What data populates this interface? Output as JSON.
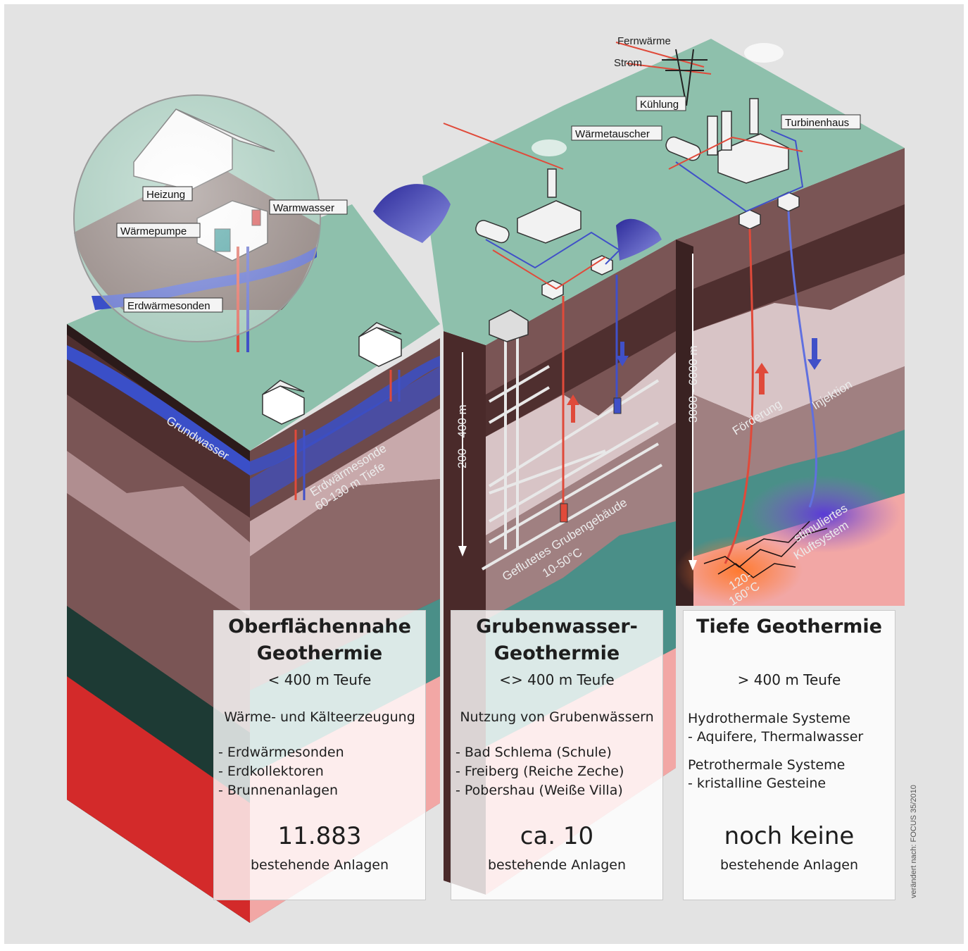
{
  "panels": [
    {
      "title": "Oberflächennahe\nGeothermie",
      "depth": "< 400 m Teufe",
      "usage": "Wärme- und Kälteerzeugung",
      "items": [
        "- Erdwärmesonden",
        "- Erdkollektoren",
        "- Brunnenanlagen"
      ],
      "count": "11.883",
      "count_label": "bestehende Anlagen"
    },
    {
      "title": "Grubenwasser-\nGeothermie",
      "depth": "<> 400 m Teufe",
      "usage": "Nutzung von Grubenwässern",
      "items": [
        "- Bad Schlema (Schule)",
        "- Freiberg (Reiche Zeche)",
        "- Pobershau (Weiße Villa)"
      ],
      "count": "ca. 10",
      "count_label": "bestehende Anlagen"
    },
    {
      "title": "Tiefe Geothermie",
      "depth": "> 400 m Teufe",
      "systems": [
        {
          "name": "Hydrothermale Systeme",
          "detail": "- Aquifere, Thermalwasser"
        },
        {
          "name": "Petrothermale Systeme",
          "detail": "- kristalline Gesteine"
        }
      ],
      "count": "noch keine",
      "count_label": "bestehende Anlagen"
    }
  ],
  "labels": {
    "heizung": "Heizung",
    "warmwasser": "Warmwasser",
    "waermepumpe": "Wärmepumpe",
    "erdwaermesonden": "Erdwärmesonden",
    "grundwasser": "Grundwasser",
    "erdwaermesonde": "Erdwärmesonde",
    "sonde_tiefe": "60-130 m Tiefe",
    "tiefe_gruben": "200 - 400 m",
    "grubengebaeude": "Geflutetes Grubengebäude",
    "grubentemp": "10-50°C",
    "tiefe_tief": "3000 - 6000 m",
    "foerderung": "Förderung",
    "injektion": "Injektion",
    "stimuliert": "stimuliertes",
    "kluftsystem": "Kluftsystem",
    "tieftemp1": "120-",
    "tieftemp2": "160°C",
    "fernwaerme": "Fernwärme",
    "strom": "Strom",
    "kuehlung": "Kühlung",
    "waermetauscher": "Wärmetauscher",
    "turbinenhaus": "Turbinenhaus"
  },
  "credit": "verändert nach: FOCUS 35/2010",
  "colors": {
    "background": "#e3e3e3",
    "surface": "#8ec0ac",
    "layer_dark": "#4f2f2f",
    "layer_mid": "#7a5555",
    "layer_light": "#b08e90",
    "layer_pale": "#d8c4c6",
    "teal": "#4a8f88",
    "dark_green": "#1d3a34",
    "red": "#d32a2a",
    "pink": "#f2a7a5",
    "water": "#3a4fc8",
    "hot": "#e8572a"
  }
}
